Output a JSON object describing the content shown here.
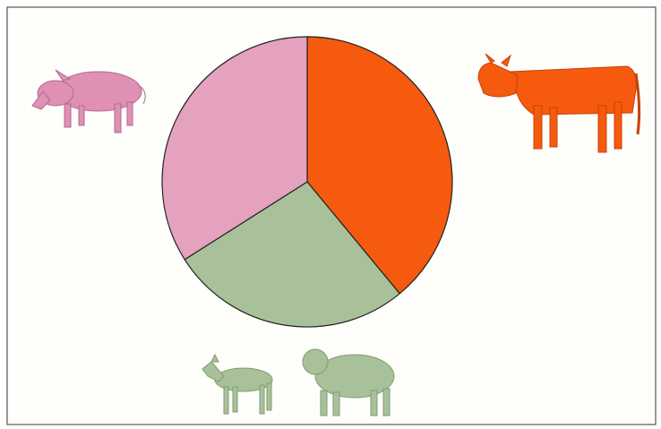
{
  "chart_data": {
    "type": "pie",
    "values": [
      39,
      27,
      34
    ],
    "colors": [
      "#f65a0e",
      "#a9c19a",
      "#e4a2bf"
    ]
  }
}
